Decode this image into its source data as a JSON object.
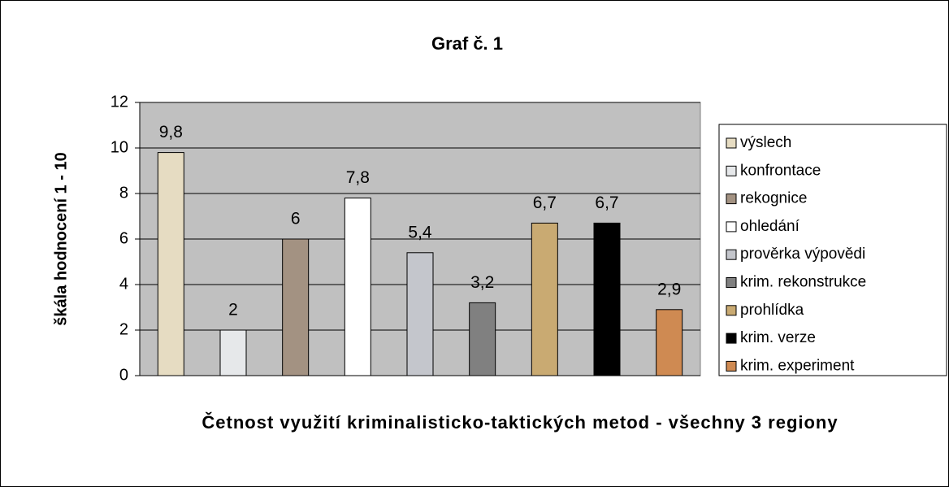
{
  "chart_data": {
    "type": "bar",
    "title": "Graf č. 1",
    "y_label": "škála hodnocení 1 - 10",
    "x_label": "Četnost využití kriminalisticko-taktických metod - všechny 3 regiony",
    "categories": [
      "výslech",
      "konfrontace",
      "rekognice",
      "ohledání",
      "prověrka výpovědi",
      "krim. rekonstrukce",
      "prohlídka",
      "krim. verze",
      "krim. experiment"
    ],
    "values": [
      9.8,
      2,
      6,
      7.8,
      5.4,
      3.2,
      6.7,
      6.7,
      2.9
    ],
    "value_labels": [
      "9,8",
      "2",
      "6",
      "7,8",
      "5,4",
      "3,2",
      "6,7",
      "6,7",
      "2,9"
    ],
    "colors": [
      "#e6dcc2",
      "#e6e8ea",
      "#a39282",
      "#ffffff",
      "#c4c6cc",
      "#808080",
      "#c9aa72",
      "#000000",
      "#cf8a52"
    ],
    "ylim": [
      0,
      12
    ],
    "yticks": [
      0,
      2,
      4,
      6,
      8,
      10,
      12
    ],
    "grid": true,
    "legend": "right"
  }
}
